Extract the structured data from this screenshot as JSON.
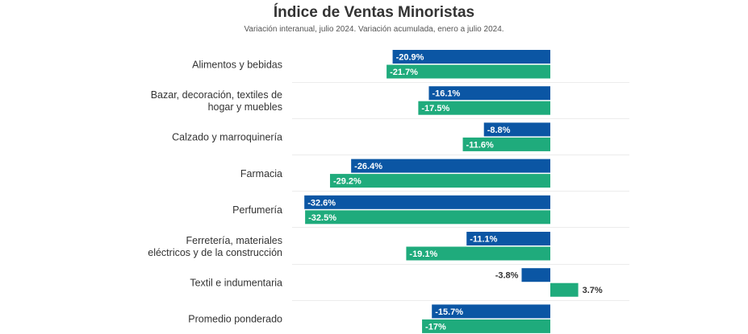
{
  "chart_data": {
    "type": "bar",
    "orientation": "horizontal",
    "title": "Índice de Ventas Minoristas",
    "subtitle": "Variación interanual, julio 2024. Variación acumulada, enero a julio 2024.",
    "categories": [
      [
        "Alimentos y bebidas"
      ],
      [
        "Bazar, decoración, textiles de",
        "hogar y muebles"
      ],
      [
        "Calzado y marroquinería"
      ],
      [
        "Farmacia"
      ],
      [
        "Perfumería"
      ],
      [
        "Ferretería, materiales",
        "eléctricos y de la construcción"
      ],
      [
        "Textil e indumentaria"
      ],
      [
        "Promedio ponderado"
      ]
    ],
    "series": [
      {
        "color": "#0b56a4",
        "values": [
          -20.9,
          -16.1,
          -8.8,
          -26.4,
          -32.6,
          -11.1,
          -3.8,
          -15.7
        ],
        "labels": [
          "-20.9%",
          "-16.1%",
          "-8.8%",
          "-26.4%",
          "-32.6%",
          "-11.1%",
          "-3.8%",
          "-15.7%"
        ]
      },
      {
        "color": "#1fab7c",
        "values": [
          -21.7,
          -17.5,
          -11.6,
          -29.2,
          -32.5,
          -19.1,
          3.7,
          -17
        ],
        "labels": [
          "-21.7%",
          "-17.5%",
          "-11.6%",
          "-29.2%",
          "-32.5%",
          "-19.1%",
          "3.7%",
          "-17%"
        ]
      }
    ],
    "grid": true,
    "legend": "none"
  }
}
